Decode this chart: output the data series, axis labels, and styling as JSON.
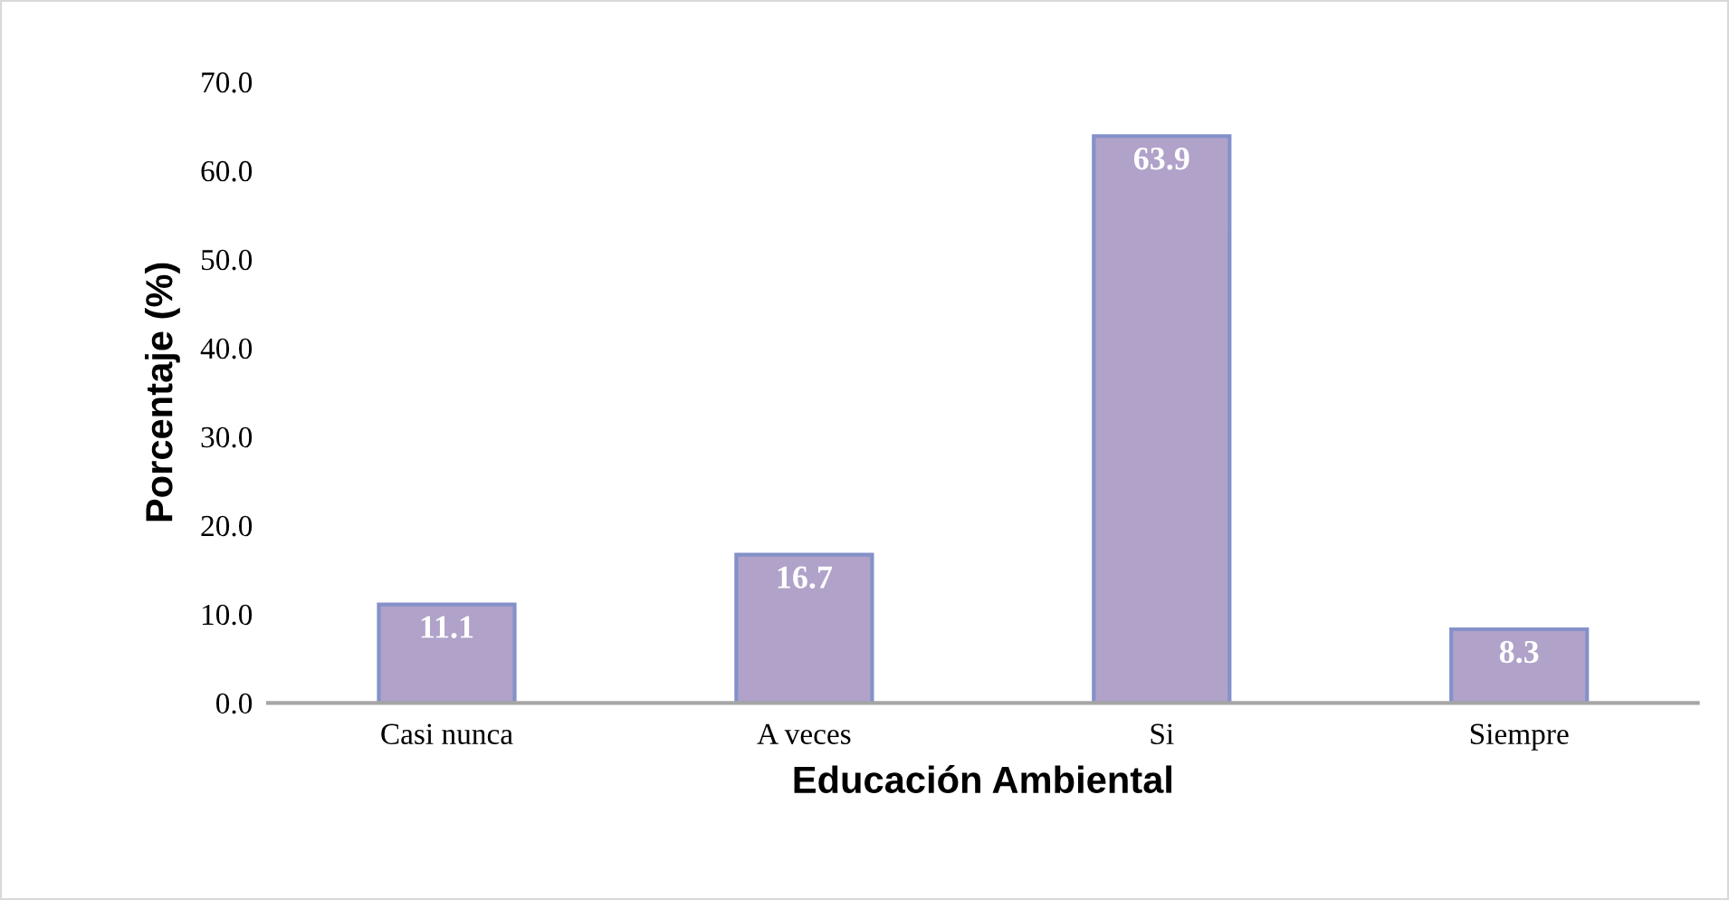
{
  "chart_data": {
    "type": "bar",
    "xlabel": "Educación Ambiental",
    "ylabel": "Porcentaje (%)",
    "categories": [
      "Casi nunca",
      "A veces",
      "Si",
      "Siempre"
    ],
    "values": [
      11.1,
      16.7,
      63.9,
      8.3
    ],
    "color": "#b0a2c9",
    "ylim": [
      0,
      70
    ],
    "yticks": [
      {
        "value": 0,
        "label": "0.0"
      },
      {
        "value": 10,
        "label": "10.0"
      },
      {
        "value": 20,
        "label": "20.0"
      },
      {
        "value": 30,
        "label": "30.0"
      },
      {
        "value": 40,
        "label": "40.0"
      },
      {
        "value": 50,
        "label": "50.0"
      },
      {
        "value": 60,
        "label": "60.0"
      },
      {
        "value": 70,
        "label": "70.0"
      }
    ],
    "grid": false,
    "legend": false,
    "data_labels": true
  }
}
